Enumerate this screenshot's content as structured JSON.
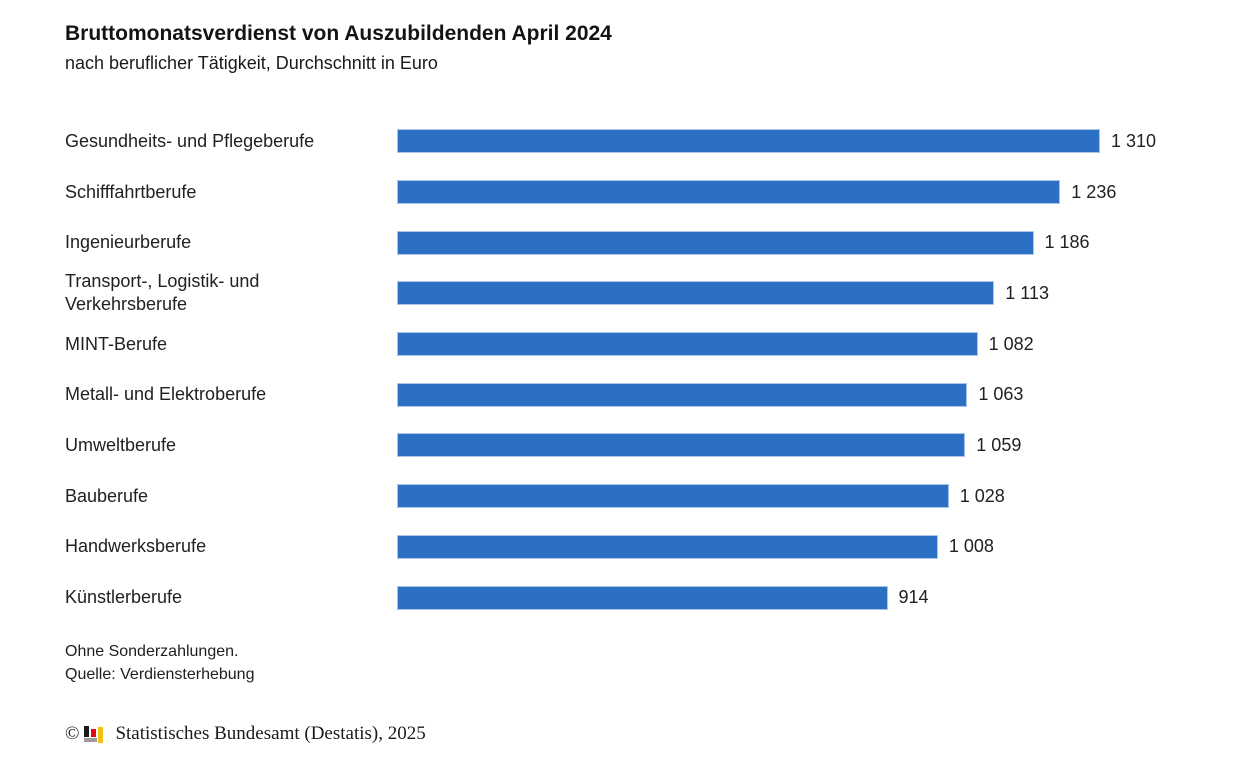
{
  "header": {
    "title": "Bruttomonatsverdienst von Auszubildenden April 2024",
    "subtitle": "nach beruflicher Tätigkeit, Durchschnitt in Euro"
  },
  "chart_data": {
    "type": "bar",
    "orientation": "horizontal",
    "title": "Bruttomonatsverdienst von Auszubildenden April 2024",
    "subtitle": "nach beruflicher Tätigkeit, Durchschnitt in Euro",
    "unit": "Euro",
    "categories": [
      "Gesundheits- und Pflegeberufe",
      "Schifffahrtberufe",
      "Ingenieurberufe",
      "Transport-, Logistik- und\nVerkehrsberufe",
      "MINT-Berufe",
      "Metall- und Elektroberufe",
      "Umweltberufe",
      "Bauberufe",
      "Handwerksberufe",
      "Künstlerberufe"
    ],
    "values": [
      1310,
      1236,
      1186,
      1113,
      1082,
      1063,
      1059,
      1028,
      1008,
      914
    ],
    "value_labels": [
      "1 310",
      "1 236",
      "1 186",
      "1 113",
      "1 082",
      "1 063",
      "1 059",
      "1 028",
      "1 008",
      "914"
    ],
    "xlim": [
      0,
      1310
    ],
    "grid": false,
    "legend": false,
    "bar_color": "#2b70c2",
    "bar_border_color": "#a9c6ea",
    "value_label_position": "outside-right"
  },
  "footer": {
    "note1": "Ohne Sonderzahlungen.",
    "note2": "Quelle: Verdiensterhebung",
    "copyright_symbol": "©",
    "copyright_text": "Statistisches Bundesamt (Destatis), 2025"
  },
  "logo": {
    "name": "destatis-bars-icon",
    "colors": {
      "black": "#1a1a1a",
      "red": "#e30613",
      "gold": "#f6bd13",
      "gray": "#9c9c9c"
    }
  }
}
